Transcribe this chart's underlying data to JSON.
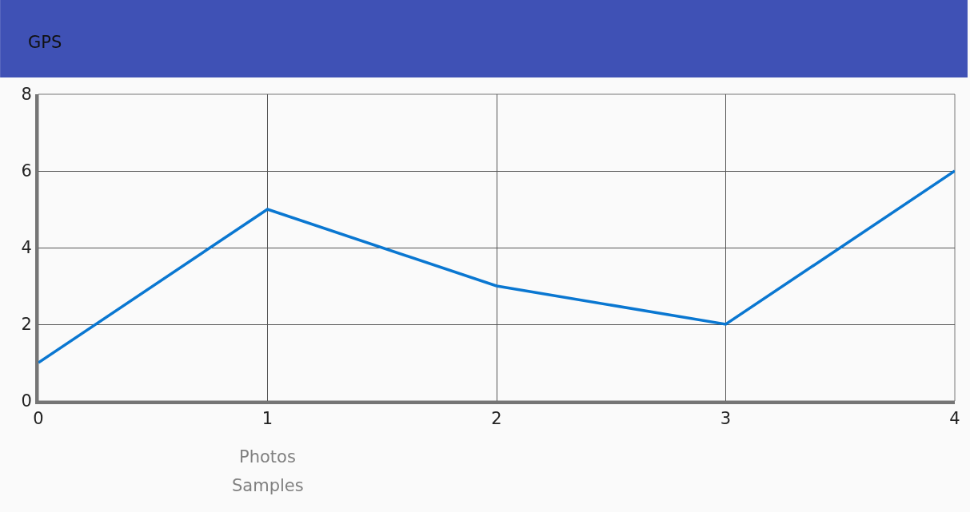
{
  "chart_data": {
    "type": "line",
    "title": "GPS",
    "x": [
      0,
      1,
      2,
      3,
      4
    ],
    "series": [
      {
        "color": "#0a77d1",
        "values": [
          1,
          5,
          3,
          2,
          6
        ]
      }
    ],
    "xlim": [
      0,
      4
    ],
    "ylim": [
      0,
      8
    ],
    "xticks": [
      0,
      1,
      2,
      3,
      4
    ],
    "yticks": [
      0,
      2,
      4,
      6,
      8
    ],
    "grid": true,
    "marker": "none",
    "line_style": "solid",
    "annotations": [
      "Photos",
      "Samples"
    ]
  }
}
